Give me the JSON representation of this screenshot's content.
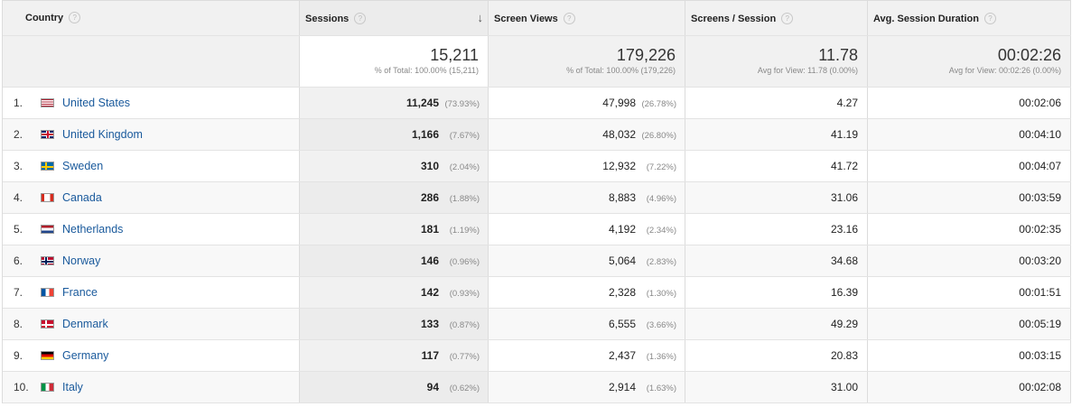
{
  "header": {
    "country": "Country",
    "sessions": "Sessions",
    "screen_views": "Screen Views",
    "screens_per_session": "Screens / Session",
    "avg_session_duration": "Avg. Session Duration",
    "help_glyph": "?",
    "sort_glyph": "↓"
  },
  "totals": {
    "sessions": "15,211",
    "sessions_sub": "% of Total: 100.00% (15,211)",
    "screen_views": "179,226",
    "screen_views_sub": "% of Total: 100.00% (179,226)",
    "screens_per_session": "11.78",
    "screens_per_session_sub": "Avg for View: 11.78 (0.00%)",
    "avg_session_duration": "00:02:26",
    "avg_session_duration_sub": "Avg for View: 00:02:26 (0.00%)"
  },
  "rows": [
    {
      "num": "1.",
      "country": "United States",
      "flag": "flag-us",
      "sessions": "11,245",
      "sessions_pct": "(73.93%)",
      "views": "47,998",
      "views_pct": "(26.78%)",
      "sps": "4.27",
      "dur": "00:02:06"
    },
    {
      "num": "2.",
      "country": "United Kingdom",
      "flag": "flag-gb",
      "sessions": "1,166",
      "sessions_pct": "(7.67%)",
      "views": "48,032",
      "views_pct": "(26.80%)",
      "sps": "41.19",
      "dur": "00:04:10"
    },
    {
      "num": "3.",
      "country": "Sweden",
      "flag": "flag-se",
      "sessions": "310",
      "sessions_pct": "(2.04%)",
      "views": "12,932",
      "views_pct": "(7.22%)",
      "sps": "41.72",
      "dur": "00:04:07"
    },
    {
      "num": "4.",
      "country": "Canada",
      "flag": "flag-ca",
      "sessions": "286",
      "sessions_pct": "(1.88%)",
      "views": "8,883",
      "views_pct": "(4.96%)",
      "sps": "31.06",
      "dur": "00:03:59"
    },
    {
      "num": "5.",
      "country": "Netherlands",
      "flag": "flag-nl",
      "sessions": "181",
      "sessions_pct": "(1.19%)",
      "views": "4,192",
      "views_pct": "(2.34%)",
      "sps": "23.16",
      "dur": "00:02:35"
    },
    {
      "num": "6.",
      "country": "Norway",
      "flag": "flag-no",
      "sessions": "146",
      "sessions_pct": "(0.96%)",
      "views": "5,064",
      "views_pct": "(2.83%)",
      "sps": "34.68",
      "dur": "00:03:20"
    },
    {
      "num": "7.",
      "country": "France",
      "flag": "flag-fr",
      "sessions": "142",
      "sessions_pct": "(0.93%)",
      "views": "2,328",
      "views_pct": "(1.30%)",
      "sps": "16.39",
      "dur": "00:01:51"
    },
    {
      "num": "8.",
      "country": "Denmark",
      "flag": "flag-dk",
      "sessions": "133",
      "sessions_pct": "(0.87%)",
      "views": "6,555",
      "views_pct": "(3.66%)",
      "sps": "49.29",
      "dur": "00:05:19"
    },
    {
      "num": "9.",
      "country": "Germany",
      "flag": "flag-de",
      "sessions": "117",
      "sessions_pct": "(0.77%)",
      "views": "2,437",
      "views_pct": "(1.36%)",
      "sps": "20.83",
      "dur": "00:03:15"
    },
    {
      "num": "10.",
      "country": "Italy",
      "flag": "flag-it",
      "sessions": "94",
      "sessions_pct": "(0.62%)",
      "views": "2,914",
      "views_pct": "(1.63%)",
      "sps": "31.00",
      "dur": "00:02:08"
    }
  ],
  "colors": {
    "link": "#1a5a9c",
    "header_bg": "#f1f1f1",
    "sorted_col_bg": "#f1f1f1"
  }
}
